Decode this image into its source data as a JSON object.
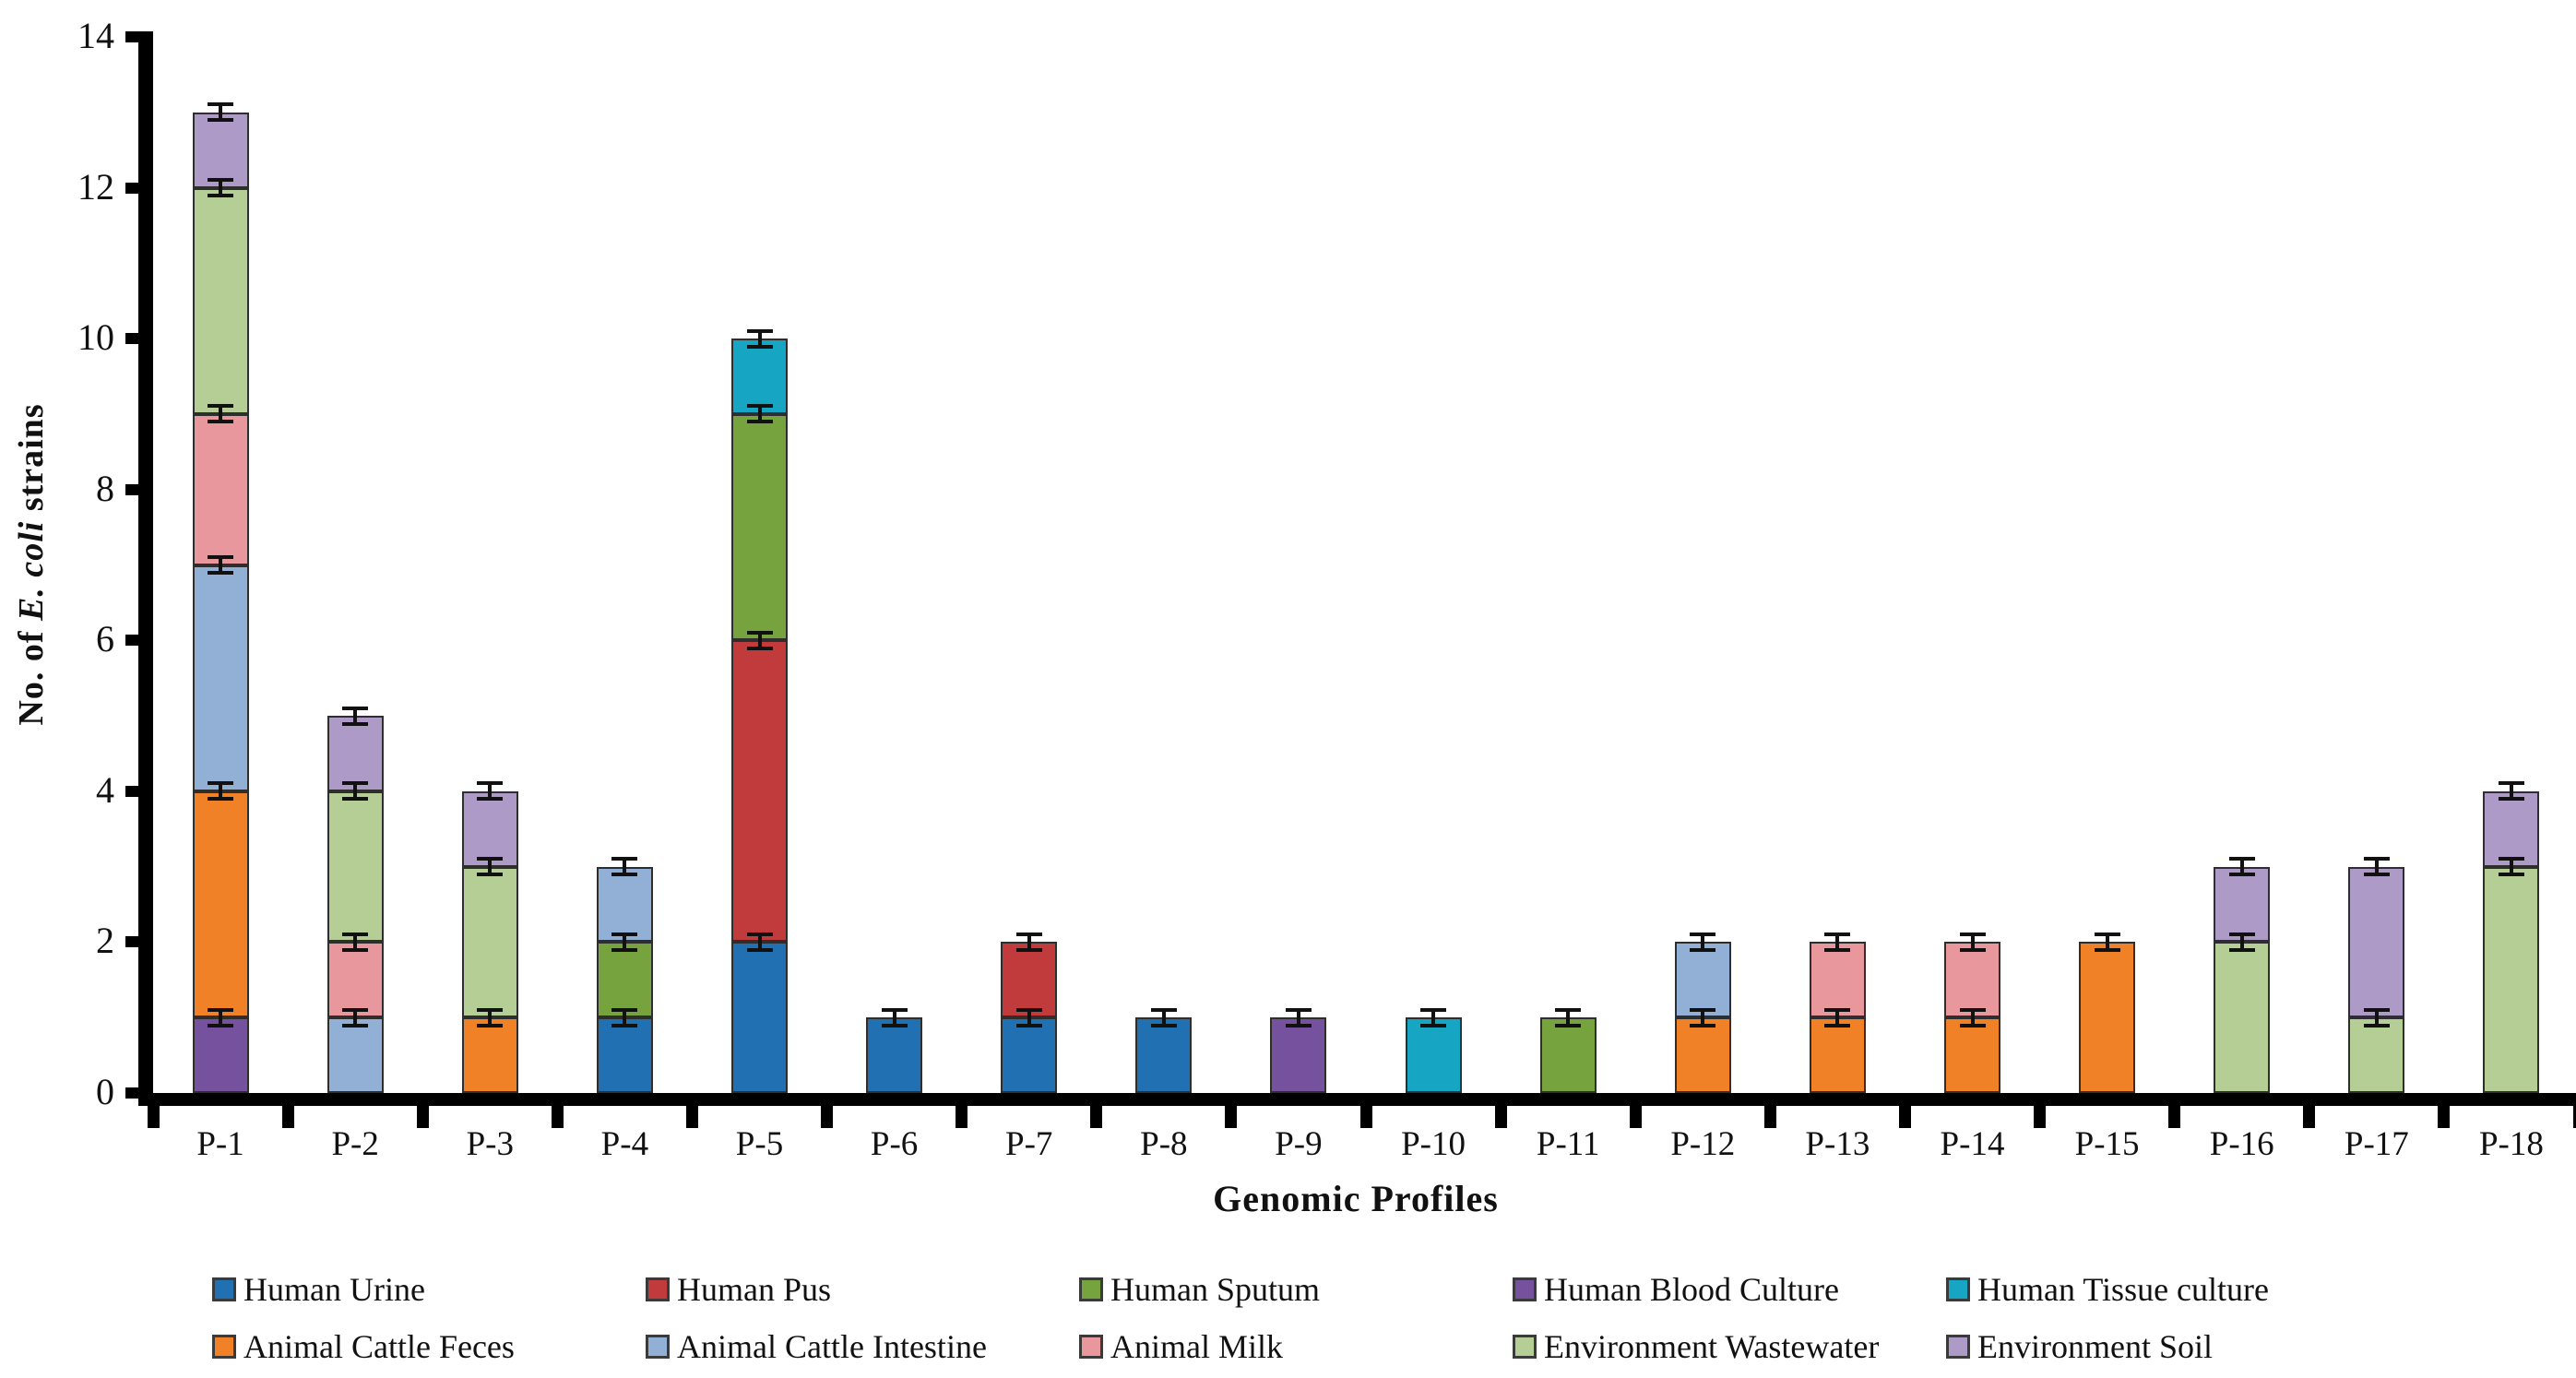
{
  "chart_data": {
    "type": "bar",
    "stacked": true,
    "xlabel": "Genomic Profiles",
    "ylabel": "No. of E. coli strains",
    "ylabel_parts": [
      {
        "text": "No. of ",
        "italic": false
      },
      {
        "text": "E. coli",
        "italic": true
      },
      {
        "text": " strains",
        "italic": false
      }
    ],
    "ylim": [
      0,
      14
    ],
    "yticks": [
      0,
      2,
      4,
      6,
      8,
      10,
      12,
      14
    ],
    "grid": false,
    "legend_position": "bottom",
    "error_bar": 0.1,
    "categories": [
      "P-1",
      "P-2",
      "P-3",
      "P-4",
      "P-5",
      "P-6",
      "P-7",
      "P-8",
      "P-9",
      "P-10",
      "P-11",
      "P-12",
      "P-13",
      "P-14",
      "P-15",
      "P-16",
      "P-17",
      "P-18"
    ],
    "series": [
      {
        "name": "Human Urine",
        "color": "#2170B2",
        "values": [
          0,
          0,
          0,
          1,
          2,
          1,
          1,
          1,
          0,
          0,
          0,
          0,
          0,
          0,
          0,
          0,
          0,
          0
        ]
      },
      {
        "name": "Human Pus",
        "color": "#C13B3C",
        "values": [
          0,
          0,
          0,
          0,
          4,
          0,
          1,
          0,
          0,
          0,
          0,
          0,
          0,
          0,
          0,
          0,
          0,
          0
        ]
      },
      {
        "name": "Human Sputum",
        "color": "#77A33E",
        "values": [
          0,
          0,
          0,
          1,
          3,
          0,
          0,
          0,
          0,
          0,
          1,
          0,
          0,
          0,
          0,
          0,
          0,
          0
        ]
      },
      {
        "name": "Human Blood Culture",
        "color": "#76519E",
        "values": [
          1,
          0,
          0,
          0,
          0,
          0,
          0,
          0,
          1,
          0,
          0,
          0,
          0,
          0,
          0,
          0,
          0,
          0
        ]
      },
      {
        "name": "Human Tissue culture",
        "color": "#16A5C3",
        "values": [
          0,
          0,
          0,
          0,
          1,
          0,
          0,
          0,
          0,
          1,
          0,
          0,
          0,
          0,
          0,
          0,
          0,
          0
        ]
      },
      {
        "name": "Animal Cattle Feces",
        "color": "#F08126",
        "values": [
          3,
          0,
          1,
          0,
          0,
          0,
          0,
          0,
          0,
          0,
          0,
          1,
          1,
          1,
          2,
          0,
          0,
          0
        ]
      },
      {
        "name": "Animal Cattle Intestine",
        "color": "#92AFD6",
        "values": [
          3,
          1,
          0,
          1,
          0,
          0,
          0,
          0,
          0,
          0,
          0,
          1,
          0,
          0,
          0,
          0,
          0,
          0
        ]
      },
      {
        "name": "Animal Milk",
        "color": "#E8989D",
        "values": [
          2,
          1,
          0,
          0,
          0,
          0,
          0,
          0,
          0,
          0,
          0,
          0,
          1,
          1,
          0,
          0,
          0,
          0
        ]
      },
      {
        "name": "Environment Wastewater",
        "color": "#B5CE95",
        "values": [
          3,
          2,
          2,
          0,
          0,
          0,
          0,
          0,
          0,
          0,
          0,
          0,
          0,
          0,
          0,
          2,
          1,
          3
        ]
      },
      {
        "name": "Environment Soil",
        "color": "#AE9AC6",
        "values": [
          1,
          1,
          1,
          0,
          0,
          0,
          0,
          0,
          0,
          0,
          0,
          0,
          0,
          0,
          0,
          1,
          2,
          1
        ]
      }
    ]
  }
}
